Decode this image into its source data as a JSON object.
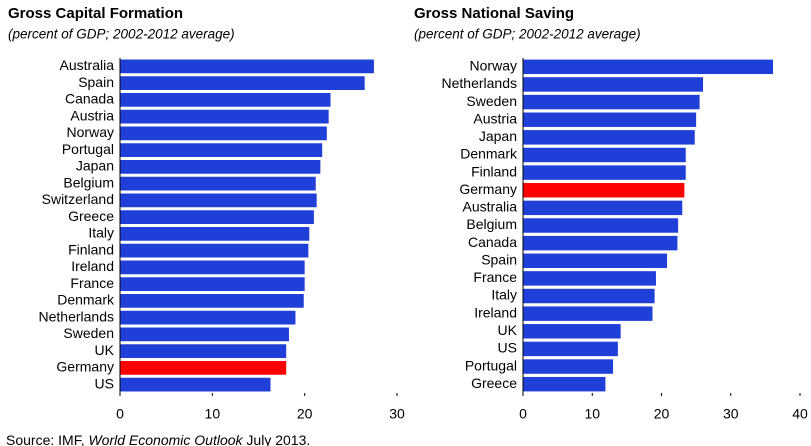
{
  "chart_data": [
    {
      "type": "barh",
      "title": "Gross Capital Formation",
      "subtitle": "(percent of GDP; 2002-2012 average)",
      "categories": [
        "Australia",
        "Spain",
        "Canada",
        "Austria",
        "Norway",
        "Portugal",
        "Japan",
        "Belgium",
        "Switzerland",
        "Greece",
        "Italy",
        "Finland",
        "Ireland",
        "France",
        "Denmark",
        "Netherlands",
        "Sweden",
        "UK",
        "Germany",
        "US"
      ],
      "values": [
        27.5,
        26.5,
        22.8,
        22.6,
        22.4,
        21.9,
        21.7,
        21.2,
        21.3,
        21.0,
        20.5,
        20.4,
        20.0,
        20.0,
        19.9,
        19.0,
        18.3,
        18.0,
        18.0,
        16.3
      ],
      "colors": [
        "#1f3fd8",
        "#1f3fd8",
        "#1f3fd8",
        "#1f3fd8",
        "#1f3fd8",
        "#1f3fd8",
        "#1f3fd8",
        "#1f3fd8",
        "#1f3fd8",
        "#1f3fd8",
        "#1f3fd8",
        "#1f3fd8",
        "#1f3fd8",
        "#1f3fd8",
        "#1f3fd8",
        "#1f3fd8",
        "#1f3fd8",
        "#1f3fd8",
        "#ff0000",
        "#1f3fd8"
      ],
      "xlim": [
        0,
        30
      ],
      "xticks": [
        0,
        10,
        20,
        30
      ],
      "grid": false
    },
    {
      "type": "barh",
      "title": "Gross National Saving",
      "subtitle": "(percent of GDP; 2002-2012 average)",
      "categories": [
        "Norway",
        "Netherlands",
        "Sweden",
        "Austria",
        "Japan",
        "Denmark",
        "Finland",
        "Germany",
        "Australia",
        "Belgium",
        "Canada",
        "Spain",
        "France",
        "Italy",
        "Ireland",
        "UK",
        "US",
        "Portugal",
        "Greece"
      ],
      "values": [
        36.1,
        26.0,
        25.5,
        25.0,
        24.8,
        23.5,
        23.5,
        23.3,
        23.0,
        22.4,
        22.3,
        20.8,
        19.2,
        19.0,
        18.7,
        14.1,
        13.7,
        13.0,
        11.9
      ],
      "colors": [
        "#1f3fd8",
        "#1f3fd8",
        "#1f3fd8",
        "#1f3fd8",
        "#1f3fd8",
        "#1f3fd8",
        "#1f3fd8",
        "#ff0000",
        "#1f3fd8",
        "#1f3fd8",
        "#1f3fd8",
        "#1f3fd8",
        "#1f3fd8",
        "#1f3fd8",
        "#1f3fd8",
        "#1f3fd8",
        "#1f3fd8",
        "#1f3fd8",
        "#1f3fd8"
      ],
      "xlim": [
        0,
        40
      ],
      "xticks": [
        0,
        10,
        20,
        30,
        40
      ],
      "grid": false
    }
  ],
  "source": {
    "prefix": "Source: IMF, ",
    "italic": "World Economic Outlook",
    "suffix": " July 2013."
  }
}
